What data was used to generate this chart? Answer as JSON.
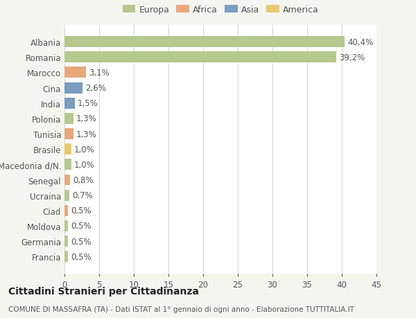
{
  "countries": [
    "Albania",
    "Romania",
    "Marocco",
    "Cina",
    "India",
    "Polonia",
    "Tunisia",
    "Brasile",
    "Macedonia d/N.",
    "Senegal",
    "Ucraina",
    "Ciad",
    "Moldova",
    "Germania",
    "Francia"
  ],
  "values": [
    40.4,
    39.2,
    3.1,
    2.6,
    1.5,
    1.3,
    1.3,
    1.0,
    1.0,
    0.8,
    0.7,
    0.5,
    0.5,
    0.5,
    0.5
  ],
  "labels": [
    "40,4%",
    "39,2%",
    "3,1%",
    "2,6%",
    "1,5%",
    "1,3%",
    "1,3%",
    "1,0%",
    "1,0%",
    "0,8%",
    "0,7%",
    "0,5%",
    "0,5%",
    "0,5%",
    "0,5%"
  ],
  "colors": [
    "#b5c98e",
    "#b5c98e",
    "#e8a87c",
    "#7b9bbf",
    "#7b9bbf",
    "#b5c98e",
    "#e8a87c",
    "#e8c96e",
    "#b5c98e",
    "#e8a87c",
    "#b5c98e",
    "#e8a87c",
    "#b5c98e",
    "#b5c98e",
    "#b5c98e"
  ],
  "legend_labels": [
    "Europa",
    "Africa",
    "Asia",
    "America"
  ],
  "legend_colors": [
    "#b5c98e",
    "#e8a87c",
    "#7b9bbf",
    "#e8c96e"
  ],
  "title": "Cittadini Stranieri per Cittadinanza",
  "subtitle": "COMUNE DI MASSAFRA (TA) - Dati ISTAT al 1° gennaio di ogni anno - Elaborazione TUTTITALIA.IT",
  "xlim": [
    0,
    45
  ],
  "xticks": [
    0,
    5,
    10,
    15,
    20,
    25,
    30,
    35,
    40,
    45
  ],
  "bg_color": "#f5f5f0",
  "plot_bg_color": "#ffffff",
  "grid_color": "#d8d8d8",
  "bar_height": 0.72,
  "text_color": "#555555",
  "label_fontsize": 8.5,
  "tick_fontsize": 8.5,
  "legend_fontsize": 9,
  "title_fontsize": 10,
  "subtitle_fontsize": 7.5
}
